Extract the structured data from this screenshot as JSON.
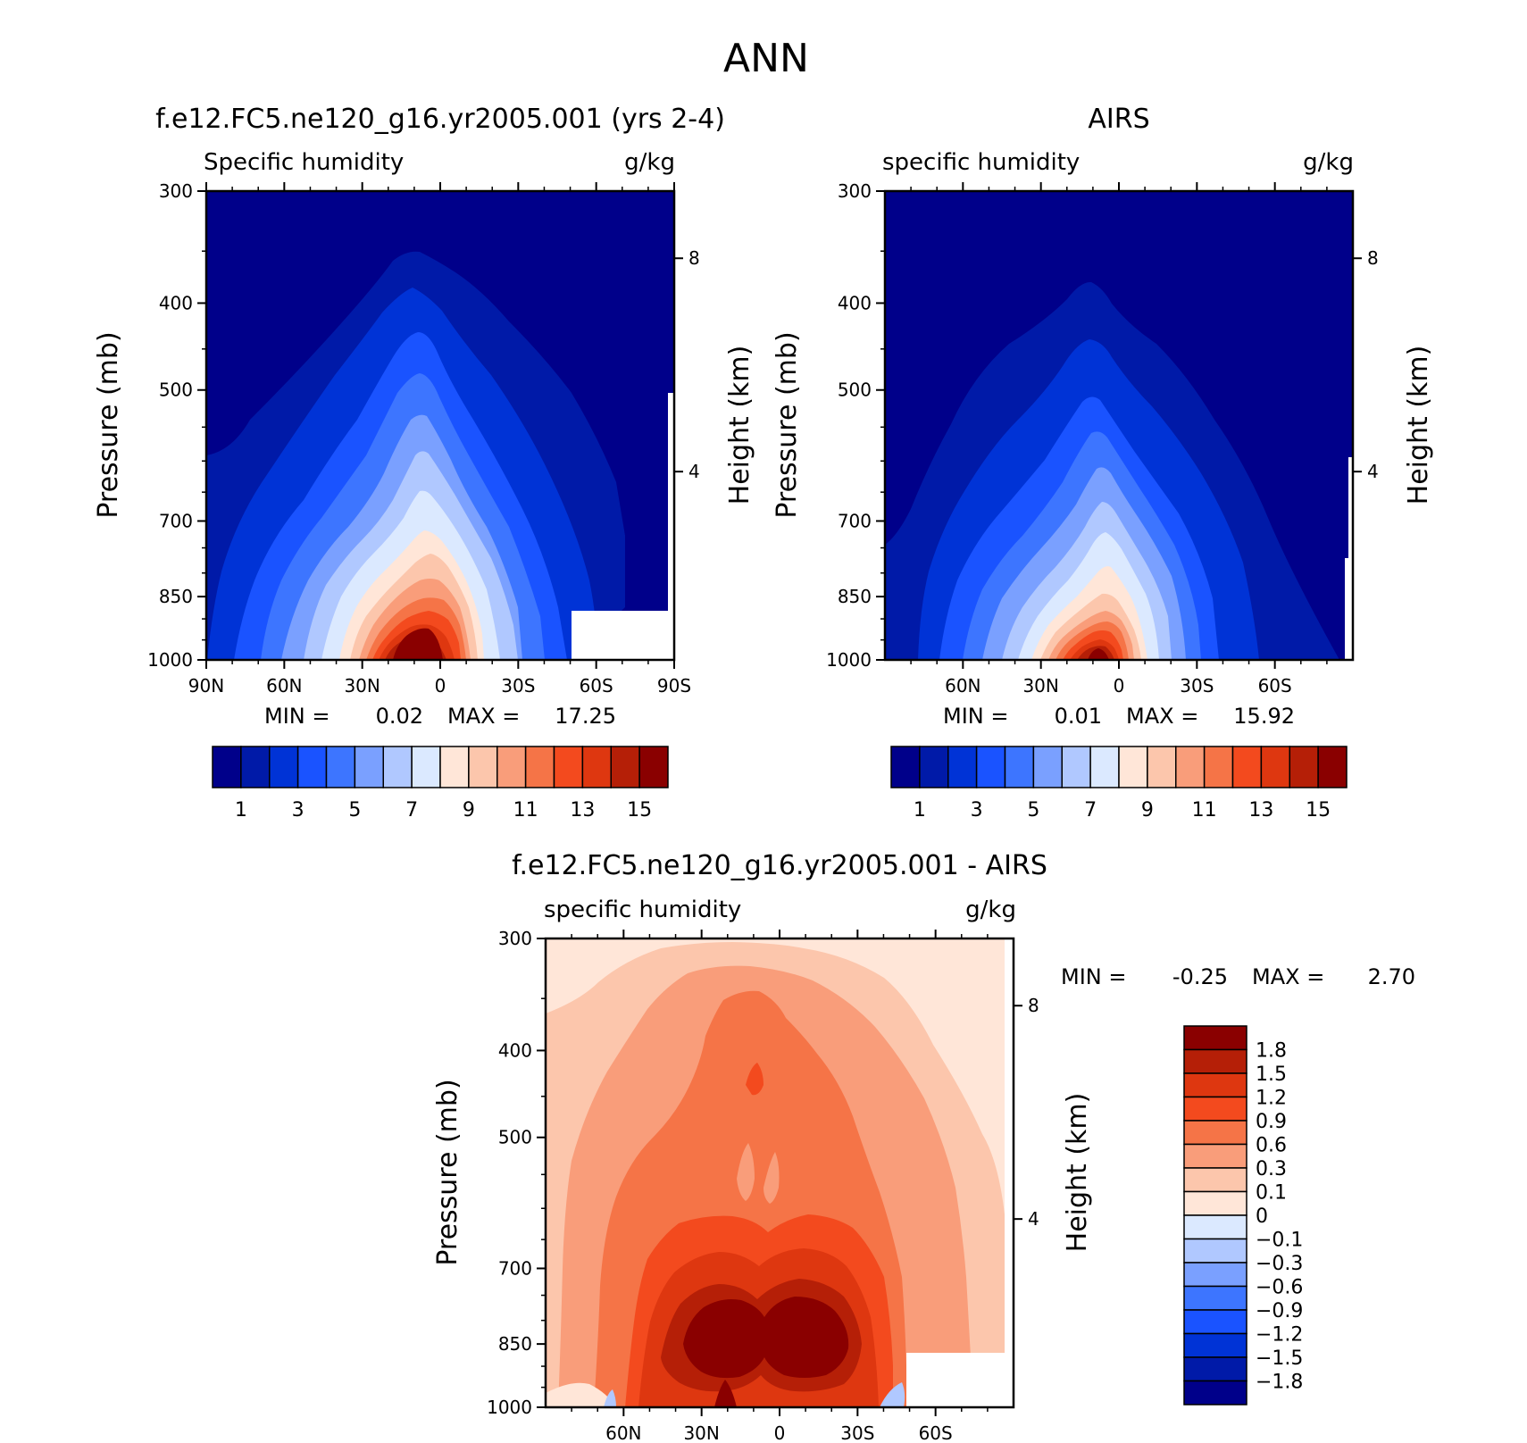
{
  "page_title": "ANN",
  "colors": {
    "abs_scale": [
      "#00008a",
      "#001aa8",
      "#0033d6",
      "#1a53ff",
      "#3d75ff",
      "#7aa0ff",
      "#b0c8ff",
      "#dbe9ff",
      "#ffe6d8",
      "#fcc6ac",
      "#f99d7a",
      "#f57447",
      "#f34a1e",
      "#de3710",
      "#b51f07",
      "#8a0000"
    ],
    "diff_scale": [
      "#8a0000",
      "#b51f07",
      "#de3710",
      "#f34a1e",
      "#f57447",
      "#f99d7a",
      "#fcc6ac",
      "#ffe6d8",
      "#dbe9ff",
      "#b0c8ff",
      "#7aa0ff",
      "#3d75ff",
      "#1a53ff",
      "#0033d6",
      "#001aa8",
      "#00008a"
    ]
  },
  "panels": {
    "model": {
      "title": "f.e12.FC5.ne120_g16.yr2005.001 (yrs 2-4)",
      "left_label": "Specific humidity",
      "right_label": "g/kg",
      "ylabel": "Pressure (mb)",
      "y2label": "Height (km)",
      "stats": {
        "min_label": "MIN =",
        "min": "0.02",
        "max_label": "MAX =",
        "max": "17.25"
      }
    },
    "obs": {
      "title": "AIRS",
      "left_label": "specific humidity",
      "right_label": "g/kg",
      "ylabel": "Pressure (mb)",
      "y2label": "Height (km)",
      "stats": {
        "min_label": "MIN =",
        "min": "0.01",
        "max_label": "MAX =",
        "max": "15.92"
      }
    },
    "diff": {
      "title": "f.e12.FC5.ne120_g16.yr2005.001 - AIRS",
      "left_label": "specific humidity",
      "right_label": "g/kg",
      "ylabel": "Pressure (mb)",
      "y2label": "Height (km)",
      "stats": {
        "min_label": "MIN =",
        "min": "-0.25",
        "max_label": "MAX =",
        "max": "2.70"
      }
    }
  },
  "chart_data": [
    {
      "type": "heatmap",
      "title": "f.e12.FC5.ne120_g16.yr2005.001 (yrs 2-4)",
      "ylabel": "Pressure (mb)",
      "y2label": "Height (km)",
      "units": "g/kg",
      "y_ticks": [
        300,
        400,
        500,
        700,
        850,
        1000
      ],
      "y2_ticks": [
        8,
        4
      ],
      "x_ticks": [
        "90N",
        "60N",
        "30N",
        "0",
        "30S",
        "60S",
        "90S"
      ],
      "xlim": [
        90,
        -90
      ],
      "ylim": [
        1000,
        300
      ],
      "y_scale": "log",
      "colorbar_labels": [
        "1",
        "3",
        "5",
        "7",
        "9",
        "11",
        "13",
        "15"
      ],
      "levels": [
        1,
        2,
        3,
        4,
        5,
        6,
        7,
        8,
        9,
        10,
        11,
        12,
        13,
        14,
        15
      ],
      "profile_peaks": {
        "1000": 17.25,
        "850": 13.5,
        "700": 8.5,
        "500": 4.0,
        "400": 1.5,
        "300": 0.5
      },
      "min": 0.02,
      "max": 17.25
    },
    {
      "type": "heatmap",
      "title": "AIRS",
      "ylabel": "Pressure (mb)",
      "y2label": "Height (km)",
      "units": "g/kg",
      "y_ticks": [
        300,
        400,
        500,
        700,
        850,
        1000
      ],
      "y2_ticks": [
        8,
        4
      ],
      "x_ticks": [
        "60N",
        "30N",
        "0",
        "30S",
        "60S"
      ],
      "xlim": [
        90,
        -90
      ],
      "ylim": [
        1000,
        300
      ],
      "y_scale": "log",
      "colorbar_labels": [
        "1",
        "3",
        "5",
        "7",
        "9",
        "11",
        "13",
        "15"
      ],
      "levels": [
        1,
        2,
        3,
        4,
        5,
        6,
        7,
        8,
        9,
        10,
        11,
        12,
        13,
        14,
        15
      ],
      "profile_peaks": {
        "1000": 15.92,
        "850": 11.0,
        "700": 6.5,
        "500": 3.0,
        "400": 1.2,
        "300": 0.5
      },
      "min": 0.01,
      "max": 15.92
    },
    {
      "type": "heatmap",
      "title": "f.e12.FC5.ne120_g16.yr2005.001 - AIRS",
      "ylabel": "Pressure (mb)",
      "y2label": "Height (km)",
      "units": "g/kg",
      "y_ticks": [
        300,
        400,
        500,
        700,
        850,
        1000
      ],
      "y2_ticks": [
        8,
        4
      ],
      "x_ticks": [
        "60N",
        "30N",
        "0",
        "30S",
        "60S"
      ],
      "xlim": [
        90,
        -90
      ],
      "ylim": [
        1000,
        300
      ],
      "y_scale": "log",
      "colorbar_labels": [
        "1.8",
        "1.5",
        "1.2",
        "0.9",
        "0.6",
        "0.3",
        "0.1",
        "0",
        "-0.1",
        "-0.3",
        "-0.6",
        "-0.9",
        "-1.2",
        "-1.5",
        "-1.8"
      ],
      "levels": [
        1.8,
        1.5,
        1.2,
        0.9,
        0.6,
        0.3,
        0.1,
        0,
        -0.1,
        -0.3,
        -0.6,
        -0.9,
        -1.2,
        -1.5,
        -1.8
      ],
      "min": -0.25,
      "max": 2.7
    }
  ]
}
